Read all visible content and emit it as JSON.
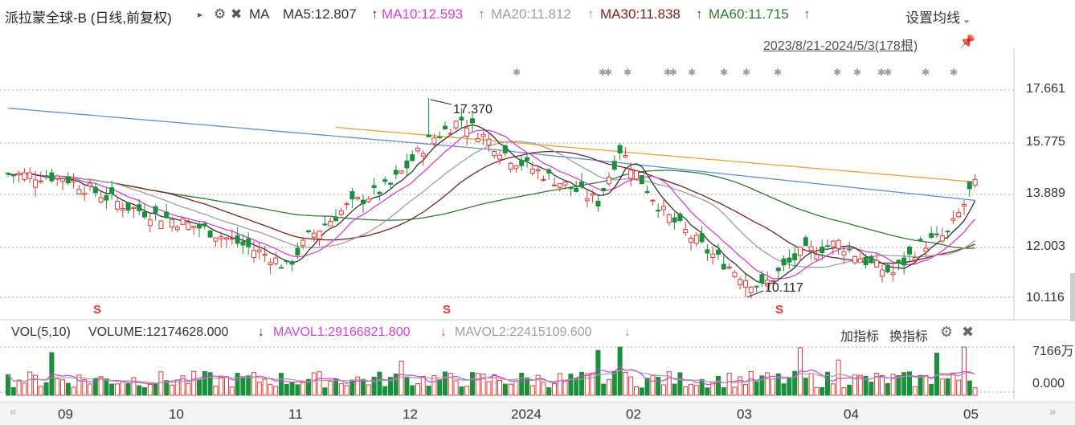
{
  "header": {
    "title": "派拉蒙全球-B (日线,前复权)",
    "ma_label": "MA",
    "ma5": "MA5:12.807",
    "ma10": "MA10:12.593",
    "ma20": "MA20:11.812",
    "ma30": "MA30:11.838",
    "ma60": "MA60:11.715",
    "settings": "设置均线",
    "range": "2023/8/21-2024/5/3(178根)"
  },
  "volume_header": {
    "vol": "VOL(5,10)",
    "volume": "VOLUME:12174628.000",
    "mavol1": "MAVOL1:29166821.800",
    "mavol2": "MAVOL2:22415109.600",
    "add_indicator": "加指标",
    "switch_indicator": "换指标"
  },
  "annotations": {
    "high": "17.370",
    "low": "10.117",
    "s_marker": "S"
  },
  "colors": {
    "up": "#e53935",
    "down": "#1a8f3c",
    "ma5": "#333333",
    "ma10": "#d63fd6",
    "ma20": "#9e9e9e",
    "ma30": "#7a1f1f",
    "ma60": "#2e7d32",
    "ma_long": "#5b8fd6",
    "ma_long2": "#f0a030"
  },
  "chart_data": [
    {
      "type": "candlestick",
      "title": "派拉蒙全球-B (日线,前复权)",
      "y_ticks": [
        "17.661",
        "15.775",
        "13.889",
        "12.003",
        "10.116"
      ],
      "ylim": [
        10.116,
        17.661
      ],
      "x_ticks": [
        "09",
        "10",
        "11",
        "12",
        "2024",
        "02",
        "03",
        "04",
        "05"
      ],
      "bars_count": 178,
      "key_values": {
        "high": 17.37,
        "low": 10.117,
        "last_close": 14.4
      },
      "series": [
        {
          "name": "MA5",
          "last": 12.807
        },
        {
          "name": "MA10",
          "last": 12.593
        },
        {
          "name": "MA20",
          "last": 11.812
        },
        {
          "name": "MA30",
          "last": 11.838
        },
        {
          "name": "MA60",
          "last": 11.715
        }
      ]
    },
    {
      "type": "bar",
      "title": "VOL(5,10)",
      "y_ticks": [
        "7166万",
        "0.000"
      ],
      "series": [
        {
          "name": "VOLUME",
          "last": 12174628.0
        },
        {
          "name": "MAVOL1",
          "last": 29166821.8
        },
        {
          "name": "MAVOL2",
          "last": 22415109.6
        }
      ]
    }
  ]
}
